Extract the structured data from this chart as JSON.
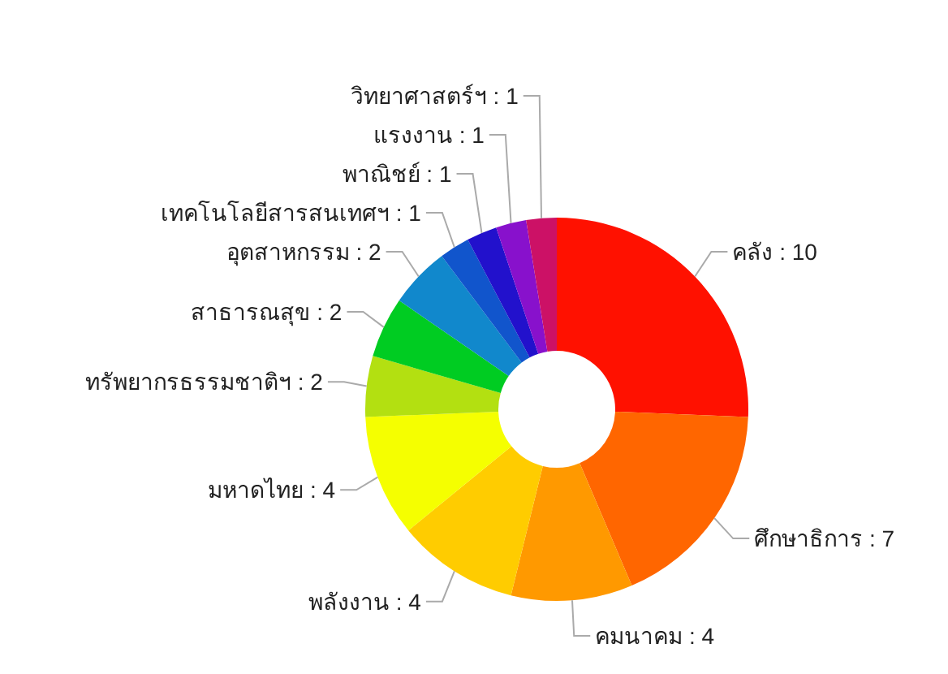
{
  "chart_data": {
    "type": "donut",
    "categories": [
      "คลัง : 10",
      "ศึกษาธิการ : 7",
      "คมนาคม : 4",
      "พลังงาน : 4",
      "มหาดไทย : 4",
      "ทรัพยากรธรรมชาติฯ : 2",
      "สาธารณสุข : 2",
      "อุตสาหกรรม : 2",
      "เทคโนโลยีสารสนเทศฯ : 1",
      "พาณิชย์ : 1",
      "แรงงาน : 1",
      "วิทยาศาสตร์ฯ : 1"
    ],
    "values": [
      10,
      7,
      4,
      4,
      4,
      2,
      2,
      2,
      1,
      1,
      1,
      1
    ],
    "colors": [
      "#ff1100",
      "#ff6600",
      "#ff9900",
      "#ffcc00",
      "#f5ff00",
      "#b3e011",
      "#00cc22",
      "#1188cc",
      "#1155cc",
      "#2211cc",
      "#8811cc",
      "#cc1166"
    ]
  }
}
